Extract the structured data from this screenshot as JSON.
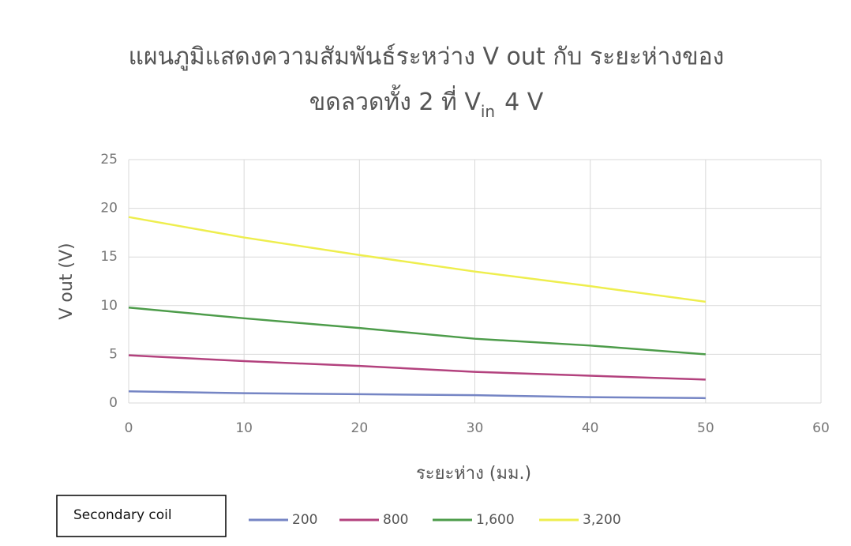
{
  "chart_data": {
    "type": "line",
    "title": {
      "line1": "แผนภูมิแสดงความสัมพันธ์ระหว่าง V out กับ ระยะห่างของ",
      "line2": "ขดลวดทั้ง 2 ที่ V",
      "subscript": "in",
      "line2_end": "4 V"
    },
    "x_label": "ระยะห่าง (มม.)",
    "y_label": "V out (V)",
    "legend_title": "Secondary coil",
    "x": [
      0,
      10,
      20,
      30,
      40,
      50
    ],
    "series": [
      {
        "name": "200",
        "color": "#7585c4",
        "values": [
          1.2,
          1.0,
          0.9,
          0.8,
          0.6,
          0.5
        ]
      },
      {
        "name": "800",
        "color": "#b3427e",
        "values": [
          4.9,
          4.3,
          3.8,
          3.2,
          2.8,
          2.4
        ]
      },
      {
        "name": "1,600",
        "color": "#4d9c4a",
        "values": [
          9.8,
          8.7,
          7.7,
          6.6,
          5.9,
          5.0
        ]
      },
      {
        "name": "3,200",
        "color": "#eeee4e",
        "values": [
          19.1,
          17.0,
          15.2,
          13.5,
          12.0,
          10.4
        ]
      }
    ],
    "xlim": [
      0,
      60
    ],
    "xticks": [
      0,
      10,
      20,
      30,
      40,
      50,
      60
    ],
    "ylim": [
      0,
      25
    ],
    "yticks": [
      0,
      5,
      10,
      15,
      20,
      25
    ],
    "grid": true
  }
}
